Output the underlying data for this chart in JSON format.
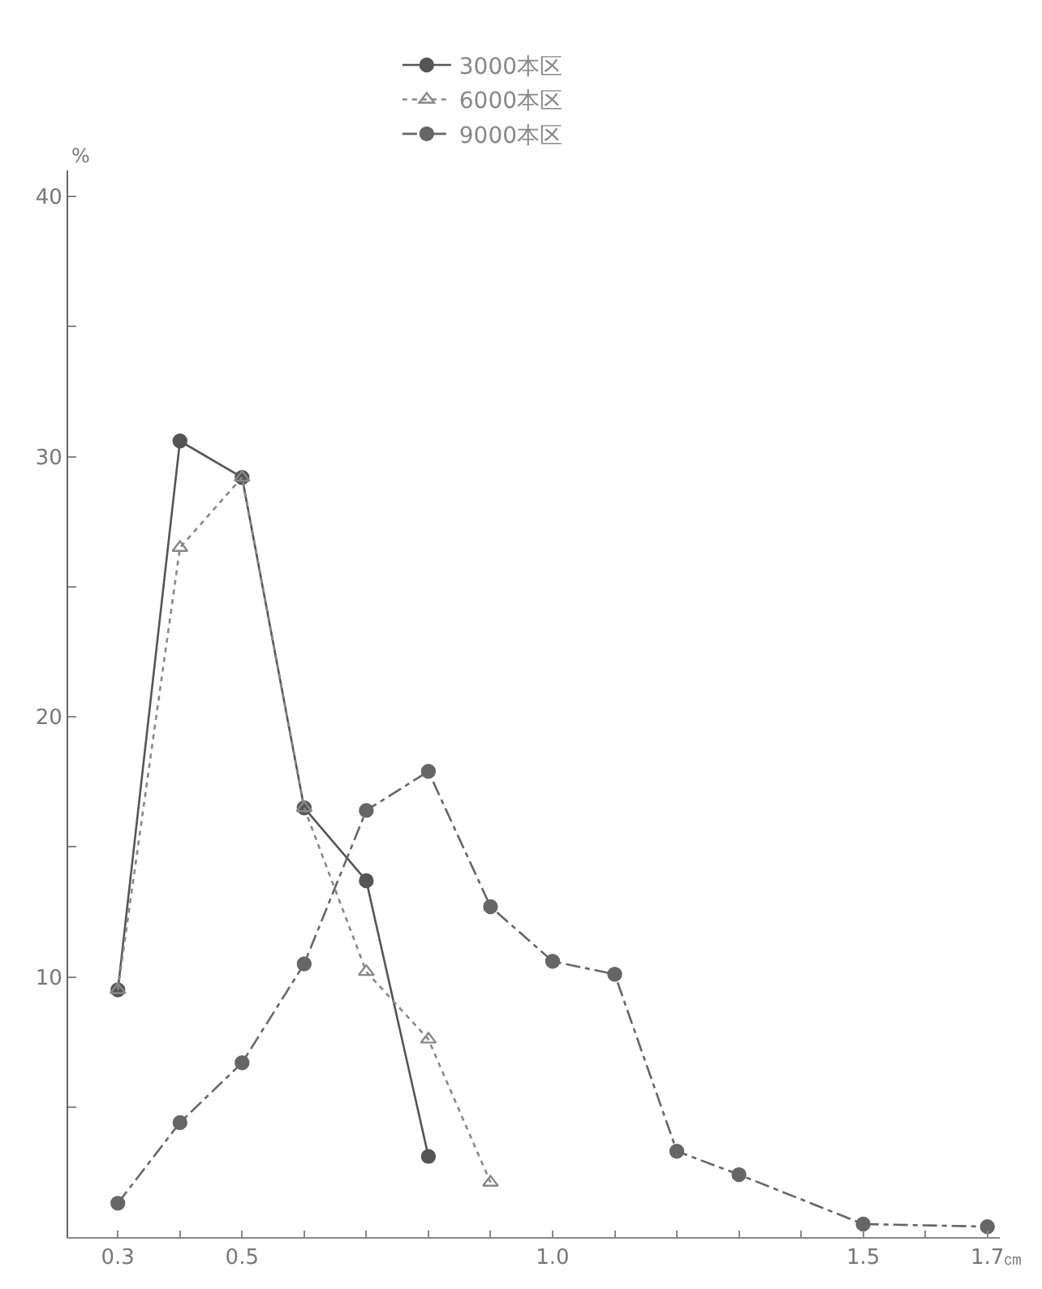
{
  "chart_data": {
    "type": "line",
    "ylabel": "%",
    "xlabel": "㎝",
    "x": [
      0.3,
      0.4,
      0.5,
      0.6,
      0.7,
      0.8,
      0.9,
      1.0,
      1.1,
      1.2,
      1.3,
      1.5,
      1.7
    ],
    "series": [
      {
        "name": "3000本区",
        "color": "#555555",
        "marker": "circle",
        "line_style": "solid",
        "values": [
          9.5,
          30.6,
          29.2,
          16.5,
          13.7,
          3.1,
          null,
          null,
          null,
          null,
          null,
          null,
          null
        ]
      },
      {
        "name": "6000本区",
        "color": "#888888",
        "marker": "triangle",
        "line_style": "dotted",
        "values": [
          9.5,
          26.5,
          29.2,
          16.5,
          10.2,
          7.6,
          2.1,
          null,
          null,
          null,
          null,
          null,
          null
        ]
      },
      {
        "name": "9000本区",
        "color": "#666666",
        "marker": "circle",
        "line_style": "dashed",
        "values": [
          1.3,
          4.4,
          6.7,
          10.5,
          16.4,
          17.9,
          12.7,
          10.6,
          10.1,
          3.3,
          2.4,
          0.5,
          0.4
        ]
      }
    ],
    "xlim": [
      0.22,
      1.72
    ],
    "xticks": [
      0.3,
      {
        "value": 0.4,
        "label": null
      },
      0.5,
      {
        "value": 0.6,
        "label": null
      },
      {
        "value": 0.7,
        "label": null
      },
      {
        "value": 0.8,
        "label": null
      },
      {
        "value": 0.9,
        "label": null
      },
      {
        "value": 1.0,
        "label": "1.0"
      },
      {
        "value": 1.1,
        "label": null
      },
      {
        "value": 1.2,
        "label": null
      },
      {
        "value": 1.3,
        "label": null
      },
      {
        "value": 1.4,
        "label": null
      },
      1.5,
      {
        "value": 1.6,
        "label": null
      },
      1.7
    ],
    "ylim": [
      0,
      41
    ],
    "yticks": [
      {
        "value": 5,
        "label": null
      },
      10,
      {
        "value": 15,
        "label": null
      },
      20,
      {
        "value": 25,
        "label": null
      },
      30,
      {
        "value": 35,
        "label": null
      },
      40
    ],
    "legend": "top"
  }
}
